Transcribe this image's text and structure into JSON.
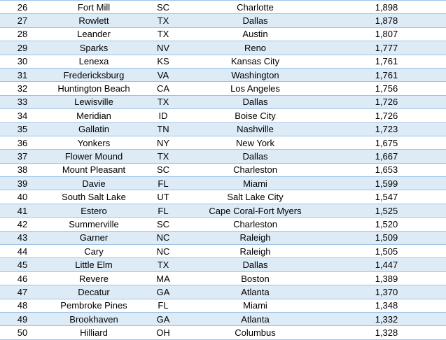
{
  "rows": [
    {
      "rank": "26",
      "city": "Fort Mill",
      "state": "SC",
      "metro": "Charlotte",
      "value": "1,898"
    },
    {
      "rank": "27",
      "city": "Rowlett",
      "state": "TX",
      "metro": "Dallas",
      "value": "1,878"
    },
    {
      "rank": "28",
      "city": "Leander",
      "state": "TX",
      "metro": "Austin",
      "value": "1,807"
    },
    {
      "rank": "29",
      "city": "Sparks",
      "state": "NV",
      "metro": "Reno",
      "value": "1,777"
    },
    {
      "rank": "30",
      "city": "Lenexa",
      "state": "KS",
      "metro": "Kansas City",
      "value": "1,761"
    },
    {
      "rank": "31",
      "city": "Fredericksburg",
      "state": "VA",
      "metro": "Washington",
      "value": "1,761"
    },
    {
      "rank": "32",
      "city": "Huntington Beach",
      "state": "CA",
      "metro": "Los Angeles",
      "value": "1,756"
    },
    {
      "rank": "33",
      "city": "Lewisville",
      "state": "TX",
      "metro": "Dallas",
      "value": "1,726"
    },
    {
      "rank": "34",
      "city": "Meridian",
      "state": "ID",
      "metro": "Boise City",
      "value": "1,726"
    },
    {
      "rank": "35",
      "city": "Gallatin",
      "state": "TN",
      "metro": "Nashville",
      "value": "1,723"
    },
    {
      "rank": "36",
      "city": "Yonkers",
      "state": "NY",
      "metro": "New York",
      "value": "1,675"
    },
    {
      "rank": "37",
      "city": "Flower Mound",
      "state": "TX",
      "metro": "Dallas",
      "value": "1,667"
    },
    {
      "rank": "38",
      "city": "Mount Pleasant",
      "state": "SC",
      "metro": "Charleston",
      "value": "1,653"
    },
    {
      "rank": "39",
      "city": "Davie",
      "state": "FL",
      "metro": "Miami",
      "value": "1,599"
    },
    {
      "rank": "40",
      "city": "South Salt Lake",
      "state": "UT",
      "metro": "Salt Lake City",
      "value": "1,547"
    },
    {
      "rank": "41",
      "city": "Estero",
      "state": "FL",
      "metro": "Cape Coral-Fort Myers",
      "value": "1,525"
    },
    {
      "rank": "42",
      "city": "Summerville",
      "state": "SC",
      "metro": "Charleston",
      "value": "1,520"
    },
    {
      "rank": "43",
      "city": "Garner",
      "state": "NC",
      "metro": "Raleigh",
      "value": "1,509"
    },
    {
      "rank": "44",
      "city": "Cary",
      "state": "NC",
      "metro": "Raleigh",
      "value": "1,505"
    },
    {
      "rank": "45",
      "city": "Little Elm",
      "state": "TX",
      "metro": "Dallas",
      "value": "1,447"
    },
    {
      "rank": "46",
      "city": "Revere",
      "state": "MA",
      "metro": "Boston",
      "value": "1,389"
    },
    {
      "rank": "47",
      "city": "Decatur",
      "state": "GA",
      "metro": "Atlanta",
      "value": "1,370"
    },
    {
      "rank": "48",
      "city": "Pembroke Pines",
      "state": "FL",
      "metro": "Miami",
      "value": "1,348"
    },
    {
      "rank": "49",
      "city": "Brookhaven",
      "state": "GA",
      "metro": "Atlanta",
      "value": "1,332"
    },
    {
      "rank": "50",
      "city": "Hilliard",
      "state": "OH",
      "metro": "Columbus",
      "value": "1,328"
    }
  ]
}
